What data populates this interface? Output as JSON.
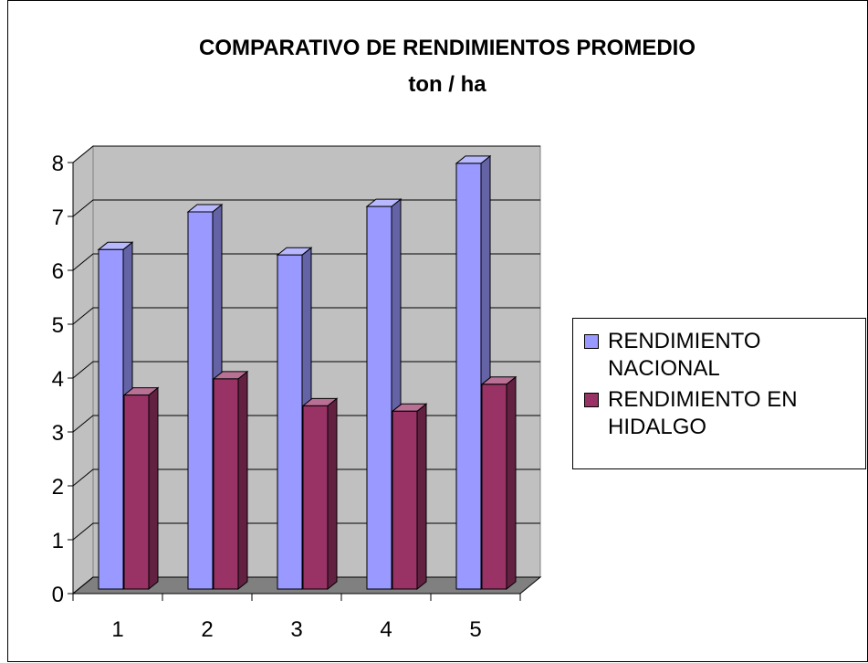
{
  "chart_data": {
    "type": "bar3d",
    "title": "COMPARATIVO DE RENDIMIENTOS PROMEDIO",
    "subtitle": "ton / ha",
    "categories": [
      "1",
      "2",
      "3",
      "4",
      "5"
    ],
    "series": [
      {
        "name": "RENDIMIENTO NACIONAL",
        "color": "#9999ff",
        "values": [
          6.3,
          7.0,
          6.2,
          7.1,
          7.9
        ]
      },
      {
        "name": "RENDIMIENTO EN HIDALGO",
        "color": "#993366",
        "values": [
          3.6,
          3.9,
          3.4,
          3.3,
          3.8
        ]
      }
    ],
    "ylim": [
      0,
      8
    ],
    "yticks": [
      0,
      1,
      2,
      3,
      4,
      5,
      6,
      7,
      8
    ],
    "grid": true,
    "legend": "right"
  }
}
